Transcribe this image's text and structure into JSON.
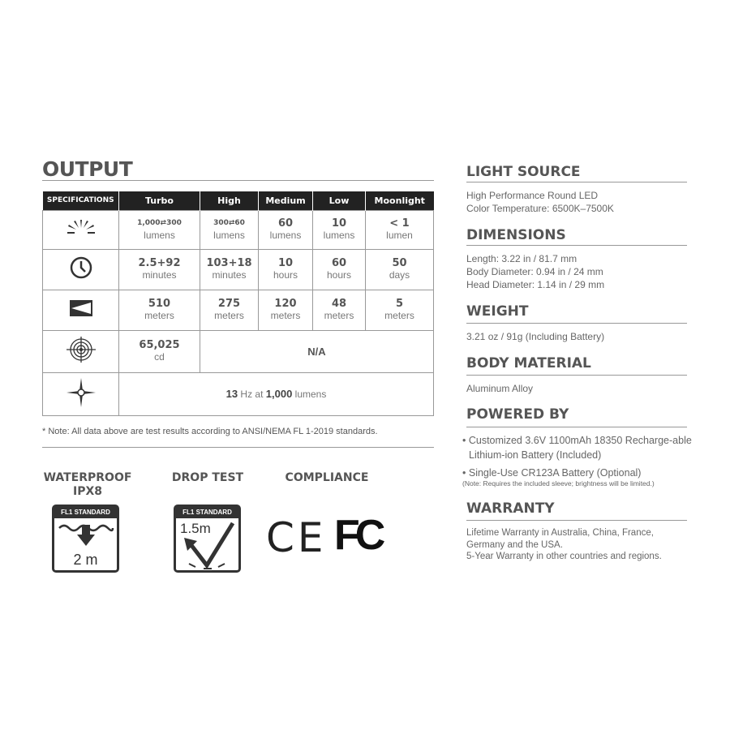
{
  "output": {
    "title": "OUTPUT",
    "headers": [
      "SPECIFICATIONS",
      "Turbo",
      "High",
      "Medium",
      "Low",
      "Moonlight"
    ],
    "rows": [
      {
        "icon": "brightness-icon",
        "cells": [
          [
            "1,000⇄300",
            "lumens"
          ],
          [
            "300⇄60",
            "lumens"
          ],
          [
            "60",
            "lumens"
          ],
          [
            "10",
            "lumens"
          ],
          [
            "< 1",
            "lumen"
          ]
        ]
      },
      {
        "icon": "clock-icon",
        "cells": [
          [
            "2.5+92",
            "minutes"
          ],
          [
            "103+18",
            "minutes"
          ],
          [
            "10",
            "hours"
          ],
          [
            "60",
            "hours"
          ],
          [
            "50",
            "days"
          ]
        ]
      },
      {
        "icon": "beam-distance-icon",
        "cells": [
          [
            "510",
            "meters"
          ],
          [
            "275",
            "meters"
          ],
          [
            "120",
            "meters"
          ],
          [
            "48",
            "meters"
          ],
          [
            "5",
            "meters"
          ]
        ]
      }
    ],
    "intensity": {
      "icon": "target-icon",
      "value": "65,025",
      "unit": "cd",
      "na": "N/A"
    },
    "strobe": {
      "icon": "strobe-icon",
      "hz": "13",
      "hz_text": " Hz at ",
      "lumens": "1,000",
      "lumens_text": " lumens"
    },
    "note": "* Note: All data above are test results according to ANSI/NEMA FL 1-2019 standards."
  },
  "badges": {
    "waterproof": {
      "title1": "WATERPROOF",
      "title2": "IPX8",
      "standard": "FL1 STANDARD",
      "depth": "2 m"
    },
    "drop": {
      "title": "DROP TEST",
      "standard": "FL1 STANDARD",
      "height": "1.5m"
    },
    "compliance": {
      "title": "COMPLIANCE",
      "marks": [
        "CE",
        "FC"
      ]
    }
  },
  "specs": {
    "light_source": {
      "title": "LIGHT SOURCE",
      "lines": [
        "High Performance Round LED",
        "Color Temperature: 6500K–7500K"
      ]
    },
    "dimensions": {
      "title": "DIMENSIONS",
      "lines": [
        "Length: 3.22 in / 81.7 mm",
        "Body Diameter: 0.94 in / 24 mm",
        "Head Diameter: 1.14 in / 29 mm"
      ]
    },
    "weight": {
      "title": "WEIGHT",
      "lines": [
        "3.21 oz / 91g (Including Battery)"
      ]
    },
    "material": {
      "title": "BODY MATERIAL",
      "lines": [
        "Aluminum Alloy"
      ]
    },
    "powered": {
      "title": "POWERED BY",
      "items": [
        "Customized  3.6V 1100mAh 18350 Recharge-able Lithium-ion Battery (Included)",
        "Single-Use CR123A Battery (Optional)"
      ],
      "note": "(Note: Requires the included sleeve; brightness will be limited.)"
    },
    "warranty": {
      "title": "WARRANTY",
      "lines": [
        "Lifetime Warranty in Australia, China, France,",
        "Germany and the USA.",
        "5-Year Warranty in other countries and regions."
      ]
    }
  }
}
